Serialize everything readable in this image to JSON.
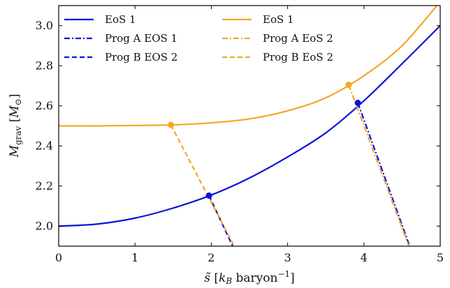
{
  "chart_data": {
    "type": "line",
    "title": "",
    "xlabel": "s̃ [k_B baryon⁻¹]",
    "ylabel": "M_grav [M_⊙]",
    "xlim": [
      0,
      5
    ],
    "ylim": [
      1.9,
      3.1
    ],
    "xticks": [
      0,
      1,
      2,
      3,
      4,
      5
    ],
    "yticks": [
      2.0,
      2.2,
      2.4,
      2.6,
      2.8,
      3.0
    ],
    "xtick_labels": [
      "0",
      "1",
      "2",
      "3",
      "4",
      "5"
    ],
    "ytick_labels": [
      "2.0",
      "2.2",
      "2.4",
      "2.6",
      "2.8",
      "3.0"
    ],
    "grid": false,
    "legend": "top-left, two columns",
    "colors": {
      "blue": "#0a14d8",
      "orange": "#f5a623"
    },
    "series": [
      {
        "name": "EoS 1",
        "color": "#0a14d8",
        "style": "solid",
        "x": [
          0,
          0.5,
          1,
          1.5,
          2,
          2.5,
          3,
          3.5,
          4,
          4.5,
          5
        ],
        "y": [
          2.0,
          2.01,
          2.04,
          2.09,
          2.155,
          2.24,
          2.345,
          2.465,
          2.625,
          2.81,
          3.0
        ]
      },
      {
        "name": "EoS 1",
        "color": "#f5a623",
        "style": "solid",
        "x": [
          0,
          0.5,
          1,
          1.5,
          2,
          2.5,
          3,
          3.5,
          4,
          4.5,
          5
        ],
        "y": [
          2.5,
          2.5,
          2.502,
          2.505,
          2.515,
          2.535,
          2.575,
          2.64,
          2.75,
          2.9,
          3.12
        ]
      },
      {
        "name": "Prog A EOS 1",
        "color": "#0a14d8",
        "style": "dashdot",
        "x": [
          3.92,
          4.6
        ],
        "y": [
          2.615,
          1.9
        ]
      },
      {
        "name": "Prog A EoS 2",
        "color": "#f5a623",
        "style": "dashdot",
        "x": [
          3.8,
          4.59
        ],
        "y": [
          2.705,
          1.9
        ]
      },
      {
        "name": "Prog B EOS 2",
        "color": "#0a14d8",
        "style": "dashed",
        "x": [
          1.97,
          2.28
        ],
        "y": [
          2.152,
          1.9
        ]
      },
      {
        "name": "Prog B EoS 2",
        "color": "#f5a623",
        "style": "dashed",
        "x": [
          1.47,
          2.3
        ],
        "y": [
          2.505,
          1.9
        ]
      }
    ],
    "points": [
      {
        "x": 1.97,
        "y": 2.152,
        "color": "#0a14d8"
      },
      {
        "x": 3.92,
        "y": 2.615,
        "color": "#0a14d8"
      },
      {
        "x": 1.47,
        "y": 2.505,
        "color": "#f5a623"
      },
      {
        "x": 3.8,
        "y": 2.705,
        "color": "#f5a623"
      }
    ],
    "legend_entries": [
      {
        "label": "EoS 1",
        "color": "#0a14d8",
        "style": "solid"
      },
      {
        "label": "Prog A EOS 1",
        "color": "#0a14d8",
        "style": "dashdot"
      },
      {
        "label": "Prog B EOS 2",
        "color": "#0a14d8",
        "style": "dashed"
      },
      {
        "label": "EoS 1",
        "color": "#f5a623",
        "style": "solid"
      },
      {
        "label": "Prog A EoS 2",
        "color": "#f5a623",
        "style": "dashdot"
      },
      {
        "label": "Prog B EoS 2",
        "color": "#f5a623",
        "style": "dashed"
      }
    ]
  }
}
